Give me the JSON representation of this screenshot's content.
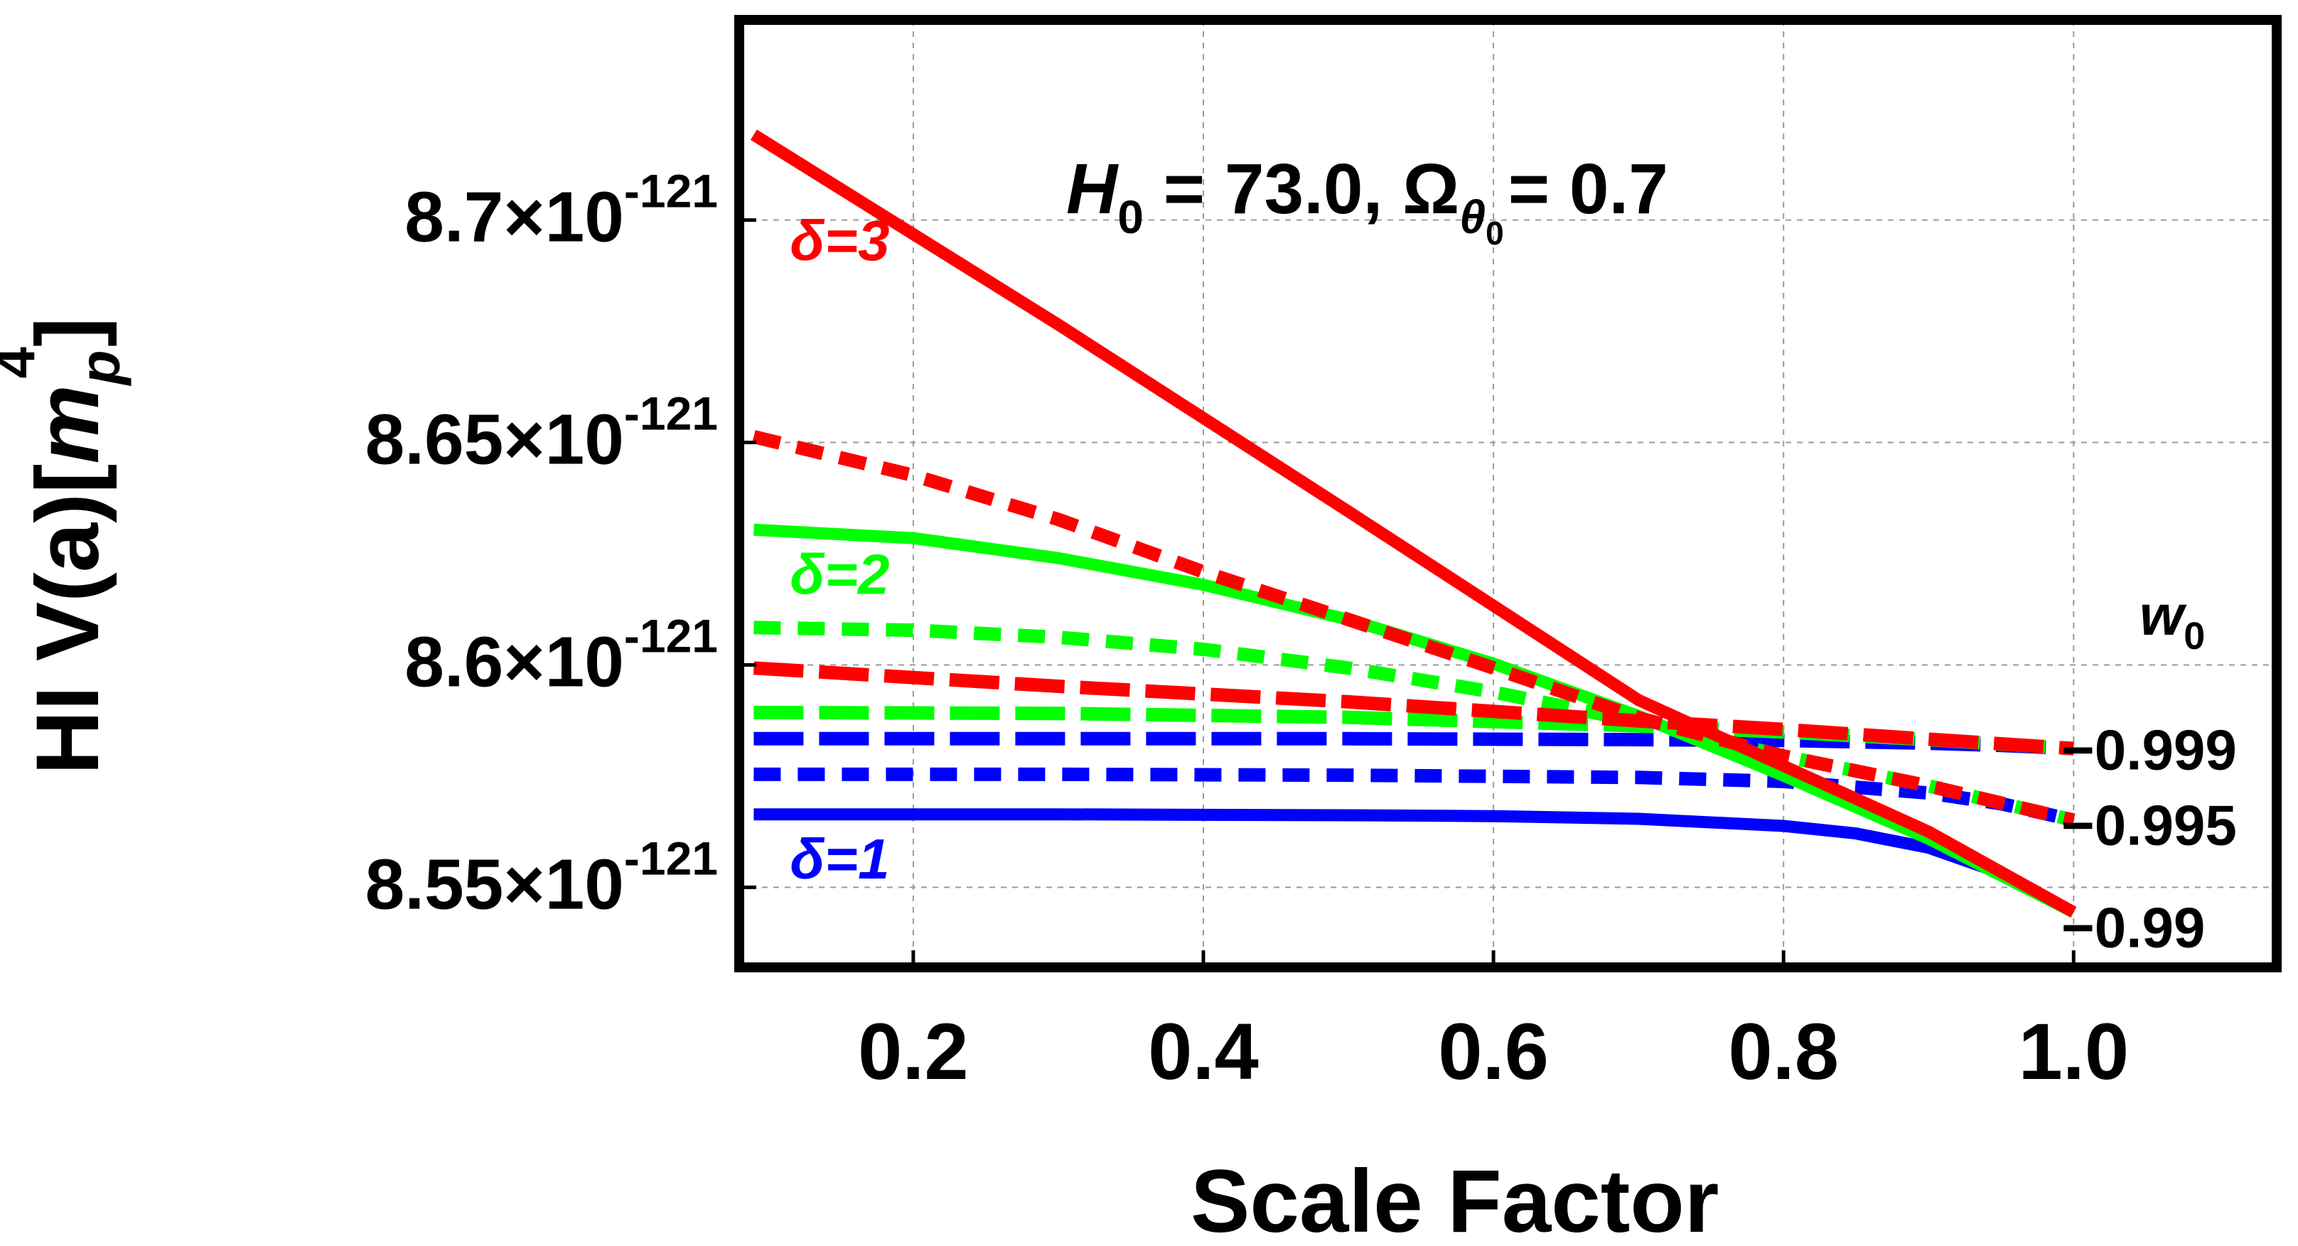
{
  "chart_data": {
    "type": "line",
    "title": "",
    "xlabel": "Scale Factor",
    "ylabel_prefix": "HI V(a)[",
    "ylabel_m": "m",
    "ylabel_sub": "p",
    "ylabel_sup": "4",
    "ylabel_suffix": "]",
    "xlim": [
      0.08,
      1.14
    ],
    "ylim": [
      8.532,
      8.745
    ],
    "y_exponent": "-121",
    "y_times": "×10",
    "grid": true,
    "x_ticks": [
      {
        "value": 0.2,
        "label": "0.2"
      },
      {
        "value": 0.4,
        "label": "0.4"
      },
      {
        "value": 0.6,
        "label": "0.6"
      },
      {
        "value": 0.8,
        "label": "0.8"
      },
      {
        "value": 1.0,
        "label": "1.0"
      }
    ],
    "y_ticks": [
      {
        "value": 8.55,
        "mantissa": "8.55"
      },
      {
        "value": 8.6,
        "mantissa": "8.6"
      },
      {
        "value": 8.65,
        "mantissa": "8.65"
      },
      {
        "value": 8.7,
        "mantissa": "8.7"
      }
    ],
    "annotation": {
      "h_label": "H",
      "h_sub": "0",
      "h_value": " = 73.0, ",
      "omega": "Ω",
      "omega_sub": "θ",
      "omega_subsub": "0",
      "omega_value": "= 0.7"
    },
    "legend": {
      "title_w": "w",
      "title_sub": "0",
      "entries": [
        {
          "label": "−0.999",
          "y": 8.581
        },
        {
          "label": "−0.995",
          "y": 8.564
        },
        {
          "label": "−0.99",
          "y": 8.541
        }
      ]
    },
    "delta_labels": [
      {
        "text": "δ=3",
        "color": "#ff0000",
        "x": 0.115,
        "y": 8.691
      },
      {
        "text": "δ=2",
        "color": "#00ff00",
        "x": 0.115,
        "y": 8.616
      },
      {
        "text": "δ=1",
        "color": "#0000ff",
        "x": 0.115,
        "y": 8.552
      }
    ],
    "series": [
      {
        "name": "δ=1, w0=−0.99",
        "color": "#0000ff",
        "dash": "solid",
        "x": [
          0.09,
          0.3,
          0.5,
          0.6,
          0.7,
          0.8,
          0.85,
          0.9,
          0.95,
          1.0
        ],
        "y": [
          8.5664,
          8.5664,
          8.5662,
          8.566,
          8.5654,
          8.5638,
          8.5621,
          8.5589,
          8.5532,
          8.5444
        ]
      },
      {
        "name": "δ=1, w0=−0.995",
        "color": "#0000ff",
        "dash": "short",
        "x": [
          0.09,
          0.3,
          0.5,
          0.7,
          0.8,
          0.9,
          0.95,
          1.0
        ],
        "y": [
          8.5754,
          8.5754,
          8.5752,
          8.5747,
          8.5738,
          8.5712,
          8.5688,
          8.5651
        ]
      },
      {
        "name": "δ=1, w0=−0.999",
        "color": "#0000ff",
        "dash": "long",
        "x": [
          0.09,
          0.5,
          0.7,
          0.8,
          0.9,
          0.95,
          1.0
        ],
        "y": [
          8.5834,
          8.5834,
          8.5832,
          8.583,
          8.5824,
          8.5819,
          8.5812
        ]
      },
      {
        "name": "δ=2, w0=−0.99",
        "color": "#00ff00",
        "dash": "solid",
        "x": [
          0.09,
          0.2,
          0.3,
          0.4,
          0.5,
          0.6,
          0.7,
          0.8,
          0.9,
          1.0
        ],
        "y": [
          8.6304,
          8.6285,
          8.624,
          8.618,
          8.6102,
          8.6003,
          8.5885,
          8.5751,
          8.5609,
          8.5444
        ]
      },
      {
        "name": "δ=2, w0=−0.995",
        "color": "#00ff00",
        "dash": "short",
        "x": [
          0.09,
          0.2,
          0.3,
          0.4,
          0.5,
          0.6,
          0.7,
          0.8,
          0.9,
          1.0
        ],
        "y": [
          8.6084,
          8.6078,
          8.6062,
          8.6035,
          8.5993,
          8.5939,
          8.5872,
          8.5795,
          8.5728,
          8.5651
        ]
      },
      {
        "name": "δ=2, w0=−0.999",
        "color": "#00ff00",
        "dash": "long",
        "x": [
          0.09,
          0.3,
          0.5,
          0.7,
          0.8,
          0.9,
          1.0
        ],
        "y": [
          8.5893,
          8.5891,
          8.5882,
          8.5863,
          8.5849,
          8.5832,
          8.5812
        ]
      },
      {
        "name": "δ=3, w0=−0.99",
        "color": "#ff0000",
        "dash": "solid",
        "x": [
          0.09,
          0.3,
          0.5,
          0.7,
          0.9,
          1.0
        ],
        "y": [
          8.7192,
          8.6765,
          8.6345,
          8.5921,
          8.5625,
          8.5444
        ]
      },
      {
        "name": "δ=3, w0=−0.995",
        "color": "#ff0000",
        "dash": "short",
        "x": [
          0.09,
          0.2,
          0.3,
          0.4,
          0.5,
          0.6,
          0.7,
          0.8,
          0.9,
          1.0
        ],
        "y": [
          8.6513,
          8.6426,
          8.6327,
          8.6209,
          8.6102,
          8.5993,
          8.5881,
          8.5795,
          8.5728,
          8.5651
        ]
      },
      {
        "name": "δ=3, w0=−0.999",
        "color": "#ff0000",
        "dash": "long",
        "x": [
          0.09,
          0.3,
          0.5,
          0.7,
          0.8,
          0.9,
          1.0
        ],
        "y": [
          8.5993,
          8.5952,
          8.5917,
          8.5874,
          8.5855,
          8.5833,
          8.5812
        ]
      }
    ]
  }
}
